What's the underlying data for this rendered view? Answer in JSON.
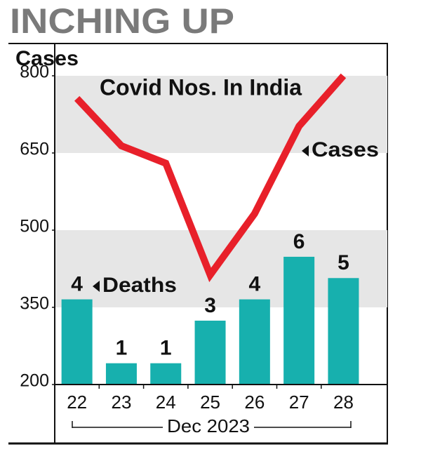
{
  "chart_data": {
    "type": "line-bar",
    "title": "INCHING UP",
    "y_label": "Cases",
    "annotation": "Covid Nos. In India",
    "x_label": "Dec 2023",
    "categories": [
      "22",
      "23",
      "24",
      "25",
      "26",
      "27",
      "28"
    ],
    "series": [
      {
        "name": "Cases",
        "type": "line",
        "color": "#e8202a",
        "values": [
          756,
          664,
          630,
          413,
          532,
          702,
          800
        ]
      },
      {
        "name": "Deaths",
        "type": "bar",
        "color": "#17b0ae",
        "axis": "y2",
        "values": [
          4,
          1,
          1,
          3,
          4,
          6,
          5
        ]
      }
    ],
    "ylim": [
      200,
      800
    ],
    "yticks": [
      200,
      350,
      500,
      650,
      800
    ],
    "y2lim": [
      0,
      14.5
    ],
    "grid": "bands"
  }
}
